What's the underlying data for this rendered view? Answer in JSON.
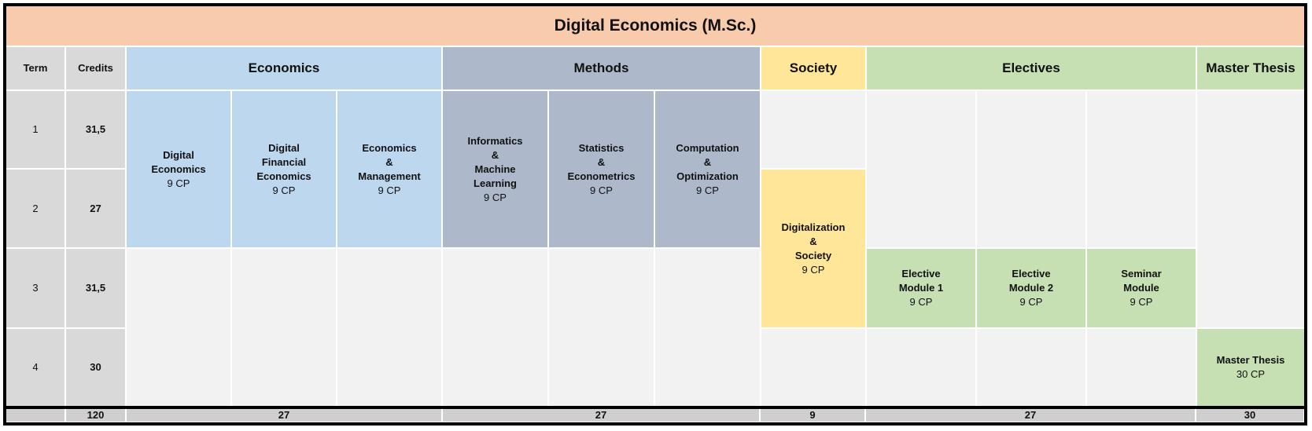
{
  "title": "Digital Economics (M.Sc.)",
  "headers": {
    "term": "Term",
    "credits": "Credits",
    "economics": "Economics",
    "methods": "Methods",
    "society": "Society",
    "electives": "Electives",
    "thesis": "Master Thesis"
  },
  "terms": [
    {
      "term": "1",
      "credits": "31,5"
    },
    {
      "term": "2",
      "credits": "27"
    },
    {
      "term": "3",
      "credits": "31,5"
    },
    {
      "term": "4",
      "credits": "30"
    }
  ],
  "modules": {
    "digital_economics": {
      "lines": [
        "Digital",
        "Economics"
      ],
      "cp": "9 CP"
    },
    "digital_financial_economics": {
      "lines": [
        "Digital",
        "Financial",
        "Economics"
      ],
      "cp": "9 CP"
    },
    "economics_management": {
      "lines": [
        "Economics",
        "&",
        "Management"
      ],
      "cp": "9 CP"
    },
    "informatics_ml": {
      "lines": [
        "Informatics",
        "&",
        "Machine",
        "Learning"
      ],
      "cp": "9 CP"
    },
    "statistics_econometrics": {
      "lines": [
        "Statistics",
        "&",
        "Econometrics"
      ],
      "cp": "9 CP"
    },
    "computation_optimization": {
      "lines": [
        "Computation",
        "&",
        "Optimization"
      ],
      "cp": "9 CP"
    },
    "digitalization_society": {
      "lines": [
        "Digitalization",
        "&",
        "Society"
      ],
      "cp": "9 CP"
    },
    "elective_1": {
      "lines": [
        "Elective",
        "Module 1"
      ],
      "cp": "9 CP"
    },
    "elective_2": {
      "lines": [
        "Elective",
        "Module 2"
      ],
      "cp": "9 CP"
    },
    "seminar": {
      "lines": [
        "Seminar",
        "Module"
      ],
      "cp": "9 CP"
    },
    "master_thesis": {
      "lines": [
        "Master Thesis"
      ],
      "cp": "30 CP"
    }
  },
  "totals": {
    "credits": "120",
    "economics": "27",
    "methods": "27",
    "society": "9",
    "electives": "27",
    "thesis": "30"
  },
  "colors": {
    "title": "#f8cbad",
    "economics": "#bdd7ee",
    "methods": "#adb9ca",
    "society": "#ffe699",
    "electives": "#c6e0b4",
    "neutral": "#d9d9d9"
  }
}
